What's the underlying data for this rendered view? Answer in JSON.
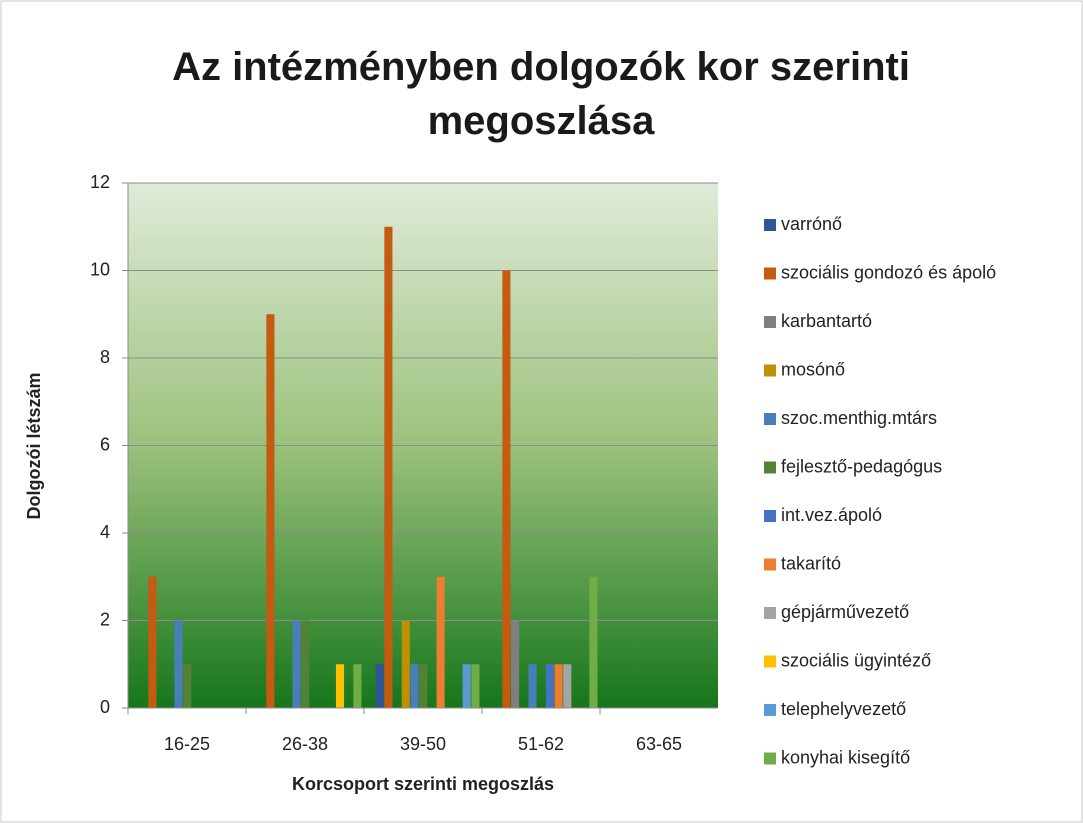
{
  "chart_data": {
    "type": "bar",
    "title": "Az intézményben dolgozók kor szerinti megoszlása",
    "x_label": "Korcsoport szerinti megoszlás",
    "y_label": "Dolgozói létszám",
    "categories": [
      "16-25",
      "26-38",
      "39-50",
      "51-62",
      "63-65"
    ],
    "series": [
      {
        "name": "varrónő",
        "color": "#2e5597",
        "values": [
          0,
          0,
          1,
          0,
          0
        ]
      },
      {
        "name": "szociális gondozó és ápoló",
        "color": "#c55a11",
        "values": [
          3,
          9,
          11,
          10,
          0
        ]
      },
      {
        "name": "karbantartó",
        "color": "#7f7f7f",
        "values": [
          0,
          0,
          0,
          2,
          0
        ]
      },
      {
        "name": "mosónő",
        "color": "#bf9000",
        "values": [
          0,
          0,
          2,
          0,
          0
        ]
      },
      {
        "name": "szoc.menthig.mtárs",
        "color": "#4a7eb8",
        "values": [
          2,
          2,
          1,
          1,
          0
        ]
      },
      {
        "name": "fejlesztő-pedagógus",
        "color": "#548235",
        "values": [
          1,
          2,
          1,
          0,
          0
        ]
      },
      {
        "name": "int.vez.ápoló",
        "color": "#4472c4",
        "values": [
          0,
          0,
          0,
          1,
          0
        ]
      },
      {
        "name": "takarító",
        "color": "#ed7d31",
        "values": [
          0,
          0,
          3,
          1,
          0
        ]
      },
      {
        "name": "gépjárművezető",
        "color": "#a5a5a5",
        "values": [
          0,
          0,
          0,
          1,
          0
        ]
      },
      {
        "name": "szociális ügyintéző",
        "color": "#ffc000",
        "values": [
          0,
          1,
          0,
          0,
          0
        ]
      },
      {
        "name": "telephelyvezető",
        "color": "#5b9bd5",
        "values": [
          0,
          0,
          1,
          0,
          0
        ]
      },
      {
        "name": "konyhai kisegítő",
        "color": "#70ad47",
        "values": [
          0,
          1,
          1,
          3,
          0
        ]
      }
    ],
    "ylim": [
      0,
      12
    ],
    "yticks": [
      0,
      2,
      4,
      6,
      8,
      10,
      12
    ],
    "grid": true,
    "legend": "right"
  }
}
